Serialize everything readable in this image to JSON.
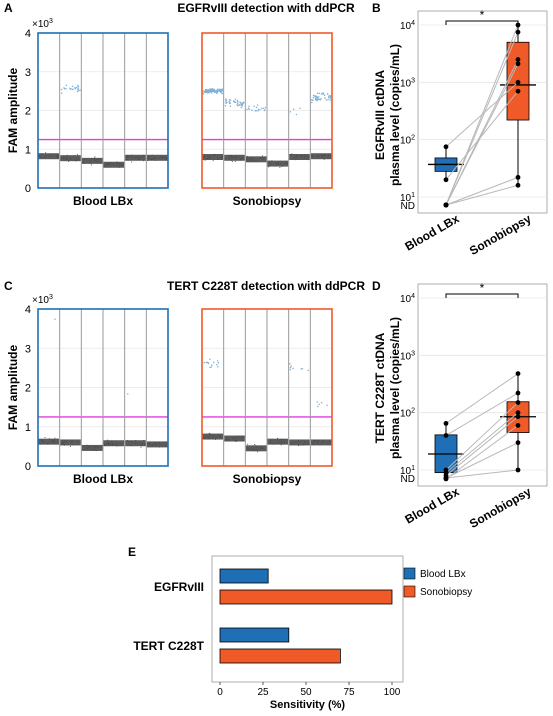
{
  "colors": {
    "blood": "#1f6fb6",
    "sono": "#f05a28",
    "threshold": "#e23be3",
    "droplet": "#4a4a4a",
    "positive": "#7fb2d8",
    "grid": "#e6e6e6",
    "well_sep": "#9a9a9a",
    "pair_line": "#b8b8b8"
  },
  "chart_data": [
    {
      "panel": "A",
      "type": "scatter",
      "title": "EGFRvIII detection with ddPCR",
      "ylabel": "FAM amplitude",
      "y_multiplier": "×10",
      "y_multiplier_exp": "3",
      "ylim": [
        0,
        4
      ],
      "yticks": [
        "0",
        "1",
        "2",
        "3",
        "4"
      ],
      "threshold": 1.25,
      "groups": [
        {
          "name": "Blood LBx",
          "wells": 6,
          "negative_levels": [
            0.82,
            0.77,
            0.7,
            0.6,
            0.78,
            0.78
          ],
          "positive_levels": [
            null,
            2.55,
            null,
            null,
            null,
            null
          ],
          "positive_counts": [
            0,
            22,
            0,
            0,
            0,
            0
          ]
        },
        {
          "name": "Sonobiopsy",
          "wells": 6,
          "negative_levels": [
            0.8,
            0.78,
            0.74,
            0.63,
            0.8,
            0.82
          ],
          "positive_levels": [
            2.5,
            2.2,
            2.05,
            null,
            2.0,
            2.35
          ],
          "positive_counts": [
            110,
            40,
            18,
            0,
            4,
            45
          ]
        }
      ]
    },
    {
      "panel": "B",
      "type": "box",
      "ylabel": "EGFRvIII ctDNA\nplasma level (copies/mL)",
      "yscale": "log",
      "ytick_values": [
        10,
        100,
        1000,
        10000
      ],
      "ytick_exponents": [
        "1",
        "2",
        "3",
        "4"
      ],
      "nd_label": "ND",
      "categories": [
        "Blood LBx",
        "Sonobiopsy"
      ],
      "box_stats": [
        {
          "q1": 28,
          "median": 37,
          "q3": 48,
          "whisker_low": 20,
          "whisker_high": 75
        },
        {
          "q1": 220,
          "median": 900,
          "q3": 5000,
          "whisker_low": 15,
          "whisker_high": 10000
        }
      ],
      "points": [
        {
          "blood": "ND",
          "sono": 10000
        },
        {
          "blood": "ND",
          "sono": 7500
        },
        {
          "blood": "ND",
          "sono": 2500
        },
        {
          "blood": "ND",
          "sono": 2100
        },
        {
          "blood": 75,
          "sono": 1000
        },
        {
          "blood": 20,
          "sono": 700
        },
        {
          "blood": "ND",
          "sono": 22
        },
        {
          "blood": "ND",
          "sono": 16
        }
      ],
      "significance": "*"
    },
    {
      "panel": "C",
      "type": "scatter",
      "title": "TERT C228T detection with ddPCR",
      "ylabel": "FAM amplitude",
      "y_multiplier": "×10",
      "y_multiplier_exp": "3",
      "ylim": [
        0,
        4
      ],
      "yticks": [
        "0",
        "1",
        "2",
        "3",
        "4"
      ],
      "threshold": 1.25,
      "groups": [
        {
          "name": "Blood LBx",
          "wells": 6,
          "negative_levels": [
            0.62,
            0.6,
            0.46,
            0.58,
            0.58,
            0.55
          ],
          "positive_levels": [
            3.8,
            null,
            null,
            null,
            1.85,
            null
          ],
          "positive_counts": [
            1,
            0,
            0,
            0,
            1,
            0
          ]
        },
        {
          "name": "Sonobiopsy",
          "wells": 6,
          "negative_levels": [
            0.75,
            0.7,
            0.45,
            0.62,
            0.6,
            0.6
          ],
          "positive_levels": [
            2.6,
            null,
            null,
            null,
            2.5,
            1.6
          ],
          "positive_counts": [
            14,
            0,
            0,
            0,
            8,
            5
          ]
        }
      ]
    },
    {
      "panel": "D",
      "type": "box",
      "ylabel": "TERT C228T ctDNA\nplasma level (copies/mL)",
      "yscale": "log",
      "ytick_values": [
        10,
        100,
        1000,
        10000
      ],
      "ytick_exponents": [
        "1",
        "2",
        "3",
        "4"
      ],
      "nd_label": "ND",
      "categories": [
        "Blood LBx",
        "Sonobiopsy"
      ],
      "box_stats": [
        {
          "q1": 9,
          "median": 19,
          "q3": 41,
          "whisker_low": 7,
          "whisker_high": 65
        },
        {
          "q1": 45,
          "median": 85,
          "q3": 155,
          "whisker_low": 10,
          "whisker_high": 480
        }
      ],
      "points": [
        {
          "blood": 65,
          "sono": 480
        },
        {
          "blood": 40,
          "sono": 220
        },
        {
          "blood": 10,
          "sono": 150
        },
        {
          "blood": 9,
          "sono": 100
        },
        {
          "blood": 8,
          "sono": 85
        },
        {
          "blood": 7,
          "sono": 60
        },
        {
          "blood": "ND",
          "sono": 30
        },
        {
          "blood": "ND",
          "sono": 10
        }
      ],
      "significance": "*"
    },
    {
      "panel": "E",
      "type": "bar",
      "orientation": "horizontal",
      "categories": [
        "EGFRvIII",
        "TERT C228T"
      ],
      "series": [
        {
          "name": "Blood LBx",
          "values": [
            28,
            40
          ]
        },
        {
          "name": "Sonobiopsy",
          "values": [
            100,
            70
          ]
        }
      ],
      "xlabel": "Sensitivity (%)",
      "xlim": [
        0,
        100
      ],
      "xticks": [
        "0",
        "25",
        "50",
        "75",
        "100"
      ],
      "legend": "right"
    }
  ]
}
